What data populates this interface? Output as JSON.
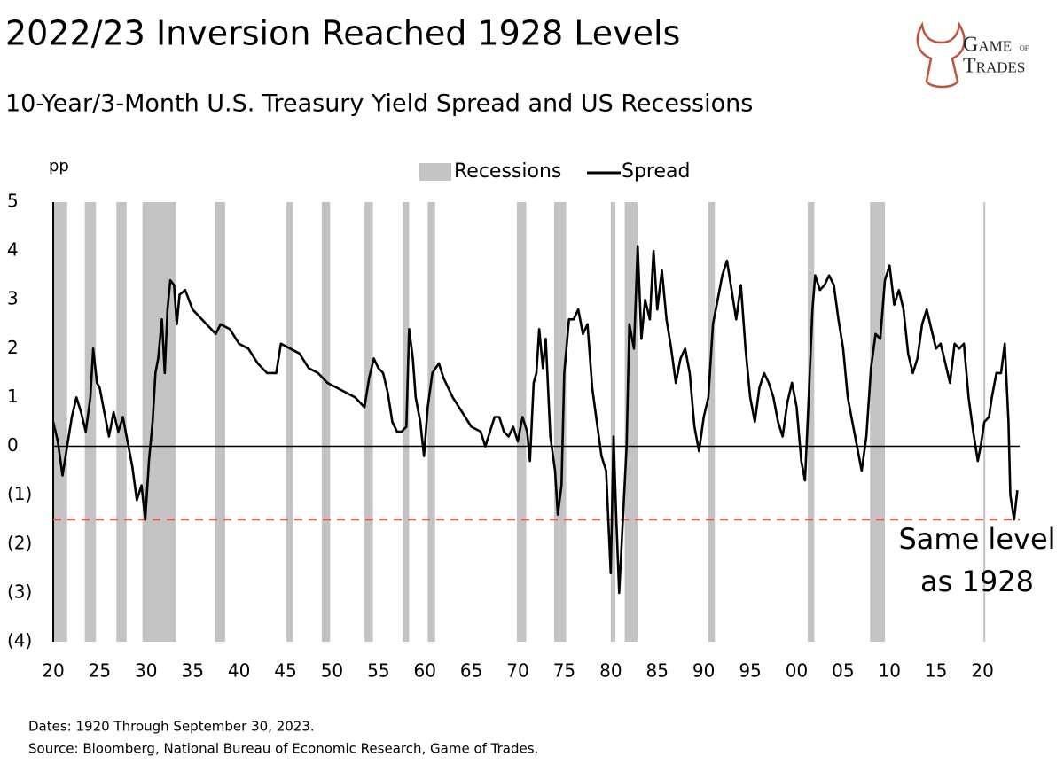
{
  "logo": {
    "top": "Game",
    "of": "of",
    "bottom": "Trades"
  },
  "chart_data": {
    "type": "line",
    "title": "2022/23 Inversion Reached 1928 Levels",
    "subtitle": "10-Year/3-Month U.S. Treasury Yield Spread and US Recessions",
    "ylabel": "pp",
    "notes": [
      "Dates: 1920 Through September 30, 2023.",
      "Source: Bloomberg, National Bureau of Economic Research, Game of Trades."
    ],
    "annotation": [
      "Same level",
      "as 1928"
    ],
    "reference_line": {
      "value": -1.5,
      "color": "#e8553a"
    },
    "zero_line": true,
    "legend": "top",
    "xlim": [
      1920,
      2024
    ],
    "xticks": [
      {
        "value": 1920,
        "label": "20"
      },
      {
        "value": 1925,
        "label": "25"
      },
      {
        "value": 1930,
        "label": "30"
      },
      {
        "value": 1935,
        "label": "35"
      },
      {
        "value": 1940,
        "label": "40"
      },
      {
        "value": 1945,
        "label": "45"
      },
      {
        "value": 1950,
        "label": "50"
      },
      {
        "value": 1955,
        "label": "55"
      },
      {
        "value": 1960,
        "label": "60"
      },
      {
        "value": 1965,
        "label": "65"
      },
      {
        "value": 1970,
        "label": "70"
      },
      {
        "value": 1975,
        "label": "75"
      },
      {
        "value": 1980,
        "label": "80"
      },
      {
        "value": 1985,
        "label": "85"
      },
      {
        "value": 1990,
        "label": "90"
      },
      {
        "value": 1995,
        "label": "95"
      },
      {
        "value": 2000,
        "label": "00"
      },
      {
        "value": 2005,
        "label": "05"
      },
      {
        "value": 2010,
        "label": "10"
      },
      {
        "value": 2015,
        "label": "15"
      },
      {
        "value": 2020,
        "label": "20"
      }
    ],
    "ylim": [
      -4,
      5
    ],
    "yticks": [
      5,
      4,
      3,
      2,
      1,
      0,
      {
        "value": -1,
        "label": "(1)"
      },
      {
        "value": -2,
        "label": "(2)"
      },
      {
        "value": -3,
        "label": "(3)"
      },
      {
        "value": -4,
        "label": "(4)"
      }
    ],
    "recessions": {
      "name": "Recessions",
      "color": "#c3c3c3",
      "ranges": [
        [
          1920.0,
          1921.5
        ],
        [
          1923.4,
          1924.6
        ],
        [
          1926.8,
          1927.9
        ],
        [
          1929.6,
          1933.2
        ],
        [
          1937.4,
          1938.5
        ],
        [
          1945.1,
          1945.8
        ],
        [
          1948.9,
          1949.8
        ],
        [
          1953.5,
          1954.4
        ],
        [
          1957.6,
          1958.3
        ],
        [
          1960.3,
          1961.1
        ],
        [
          1969.9,
          1970.9
        ],
        [
          1973.9,
          1975.2
        ],
        [
          1980.0,
          1980.5
        ],
        [
          1981.5,
          1982.9
        ],
        [
          1990.5,
          1991.2
        ],
        [
          2001.2,
          2001.9
        ],
        [
          2007.9,
          2009.5
        ],
        [
          2020.1,
          2020.3
        ]
      ]
    },
    "x": [
      1920.0,
      1920.5,
      1921.0,
      1921.5,
      1922.0,
      1922.5,
      1923.0,
      1923.5,
      1924.0,
      1924.3,
      1924.7,
      1925.0,
      1925.5,
      1926.0,
      1926.5,
      1927.0,
      1927.5,
      1928.0,
      1928.5,
      1929.0,
      1929.5,
      1929.9,
      1930.3,
      1930.7,
      1931.0,
      1931.3,
      1931.7,
      1932.0,
      1932.3,
      1932.6,
      1933.0,
      1933.3,
      1933.6,
      1934.2,
      1935.0,
      1936.0,
      1937.0,
      1937.5,
      1938.0,
      1939.0,
      1940.0,
      1941.0,
      1942.0,
      1943.0,
      1944.0,
      1944.5,
      1945.5,
      1946.5,
      1947.5,
      1948.5,
      1949.5,
      1950.5,
      1951.5,
      1952.5,
      1953.0,
      1953.5,
      1954.0,
      1954.5,
      1955.0,
      1955.5,
      1956.0,
      1956.5,
      1957.0,
      1957.5,
      1958.0,
      1958.3,
      1958.7,
      1959.0,
      1959.5,
      1959.9,
      1960.3,
      1960.8,
      1961.5,
      1962.0,
      1963.0,
      1964.0,
      1965.0,
      1966.0,
      1966.5,
      1967.0,
      1967.5,
      1968.0,
      1968.5,
      1969.0,
      1969.5,
      1970.0,
      1970.5,
      1971.0,
      1971.3,
      1971.7,
      1972.0,
      1972.3,
      1972.7,
      1973.0,
      1973.5,
      1974.0,
      1974.3,
      1974.7,
      1975.0,
      1975.5,
      1976.0,
      1976.5,
      1977.0,
      1977.5,
      1978.0,
      1978.5,
      1979.0,
      1979.5,
      1980.0,
      1980.3,
      1980.6,
      1980.9,
      1981.3,
      1981.7,
      1982.0,
      1982.5,
      1982.9,
      1983.3,
      1983.7,
      1984.2,
      1984.6,
      1985.0,
      1985.5,
      1986.0,
      1986.5,
      1987.0,
      1987.5,
      1988.0,
      1988.5,
      1989.0,
      1989.5,
      1990.0,
      1990.5,
      1991.0,
      1991.5,
      1992.0,
      1992.5,
      1993.0,
      1993.5,
      1994.0,
      1994.5,
      1995.0,
      1995.5,
      1996.0,
      1996.5,
      1997.0,
      1997.5,
      1998.0,
      1998.5,
      1999.0,
      1999.5,
      2000.0,
      2000.5,
      2000.9,
      2001.3,
      2001.7,
      2002.0,
      2002.5,
      2003.0,
      2003.5,
      2004.0,
      2004.5,
      2005.0,
      2005.5,
      2006.0,
      2006.5,
      2007.0,
      2007.5,
      2008.0,
      2008.5,
      2009.0,
      2009.5,
      2010.0,
      2010.5,
      2011.0,
      2011.5,
      2012.0,
      2012.5,
      2013.0,
      2013.5,
      2014.0,
      2014.5,
      2015.0,
      2015.5,
      2016.0,
      2016.5,
      2017.0,
      2017.5,
      2018.0,
      2018.5,
      2019.0,
      2019.5,
      2019.8,
      2020.2,
      2020.7,
      2021.0,
      2021.5,
      2022.0,
      2022.4,
      2022.8,
      2023.0,
      2023.4,
      2023.75
    ],
    "series": [
      {
        "name": "Spread",
        "color": "#000000",
        "values": [
          0.5,
          0.1,
          -0.6,
          0.0,
          0.6,
          1.0,
          0.7,
          0.3,
          1.0,
          2.0,
          1.3,
          1.2,
          0.7,
          0.2,
          0.7,
          0.3,
          0.6,
          0.1,
          -0.4,
          -1.1,
          -0.8,
          -1.5,
          -0.3,
          0.5,
          1.5,
          1.8,
          2.6,
          1.5,
          2.8,
          3.4,
          3.3,
          2.5,
          3.1,
          3.2,
          2.8,
          2.6,
          2.4,
          2.3,
          2.5,
          2.4,
          2.1,
          2.0,
          1.7,
          1.5,
          1.5,
          2.1,
          2.0,
          1.9,
          1.6,
          1.5,
          1.3,
          1.2,
          1.1,
          1.0,
          0.9,
          0.8,
          1.4,
          1.8,
          1.6,
          1.5,
          1.1,
          0.5,
          0.3,
          0.3,
          0.4,
          2.4,
          1.8,
          1.0,
          0.5,
          -0.2,
          0.8,
          1.5,
          1.7,
          1.4,
          1.0,
          0.7,
          0.4,
          0.3,
          0.0,
          0.3,
          0.6,
          0.6,
          0.3,
          0.2,
          0.4,
          0.1,
          0.6,
          0.3,
          -0.3,
          1.3,
          1.5,
          2.4,
          1.6,
          2.2,
          0.2,
          -0.5,
          -1.4,
          -0.8,
          1.5,
          2.6,
          2.6,
          2.8,
          2.3,
          2.5,
          1.2,
          0.5,
          -0.2,
          -0.5,
          -2.6,
          0.2,
          -1.5,
          -3.0,
          -1.5,
          0.0,
          2.5,
          2.0,
          4.1,
          2.2,
          3.0,
          2.6,
          4.0,
          2.8,
          3.6,
          2.6,
          2.0,
          1.3,
          1.8,
          2.0,
          1.5,
          0.4,
          -0.1,
          0.6,
          1.0,
          2.5,
          3.0,
          3.5,
          3.8,
          3.2,
          2.6,
          3.3,
          2.0,
          1.0,
          0.5,
          1.2,
          1.5,
          1.3,
          1.0,
          0.5,
          0.2,
          0.9,
          1.3,
          0.8,
          -0.3,
          -0.7,
          1.0,
          2.8,
          3.5,
          3.2,
          3.3,
          3.5,
          3.3,
          2.6,
          2.0,
          1.0,
          0.5,
          0.0,
          -0.5,
          0.2,
          1.6,
          2.3,
          2.2,
          3.4,
          3.7,
          2.9,
          3.2,
          2.8,
          1.9,
          1.5,
          1.8,
          2.5,
          2.8,
          2.4,
          2.0,
          2.1,
          1.7,
          1.3,
          2.1,
          2.0,
          2.1,
          1.0,
          0.3,
          -0.3,
          0.0,
          0.5,
          0.6,
          1.0,
          1.5,
          1.5,
          2.1,
          0.5,
          -1.0,
          -1.5,
          -0.9
        ]
      }
    ]
  }
}
